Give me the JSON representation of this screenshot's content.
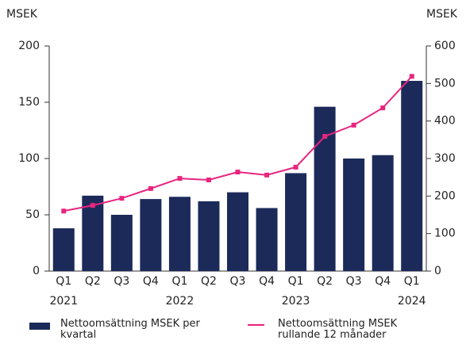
{
  "chart_data": {
    "type": "bar_line",
    "y_label": "MSEK",
    "y2_label": "MSEK",
    "categories": [
      "Q1",
      "Q2",
      "Q3",
      "Q4",
      "Q1",
      "Q2",
      "Q3",
      "Q4",
      "Q1",
      "Q2",
      "Q3",
      "Q4",
      "Q1"
    ],
    "year_labels": [
      "2021",
      null,
      null,
      null,
      "2022",
      null,
      null,
      null,
      "2023",
      null,
      null,
      null,
      "2024"
    ],
    "series": [
      {
        "name": "Nettoomsättning MSEK per kvartal",
        "color": "#1c2a5a",
        "type": "bar",
        "values": [
          38,
          67,
          50,
          64,
          66,
          62,
          70,
          56,
          87,
          146,
          100,
          103,
          169
        ]
      },
      {
        "name": "Nettoomsättning MSEK rullande 12 månader",
        "color": "#e8257f",
        "type": "line",
        "axis": "y2",
        "values": [
          160,
          175,
          194,
          220,
          247,
          243,
          264,
          256,
          277,
          359,
          389,
          435,
          519
        ]
      }
    ],
    "ylim": [
      0,
      200
    ],
    "yticks": [
      0,
      50,
      100,
      150,
      200
    ],
    "y2lim": [
      0,
      600
    ],
    "y2ticks": [
      0,
      100,
      200,
      300,
      400,
      500,
      600
    ]
  }
}
